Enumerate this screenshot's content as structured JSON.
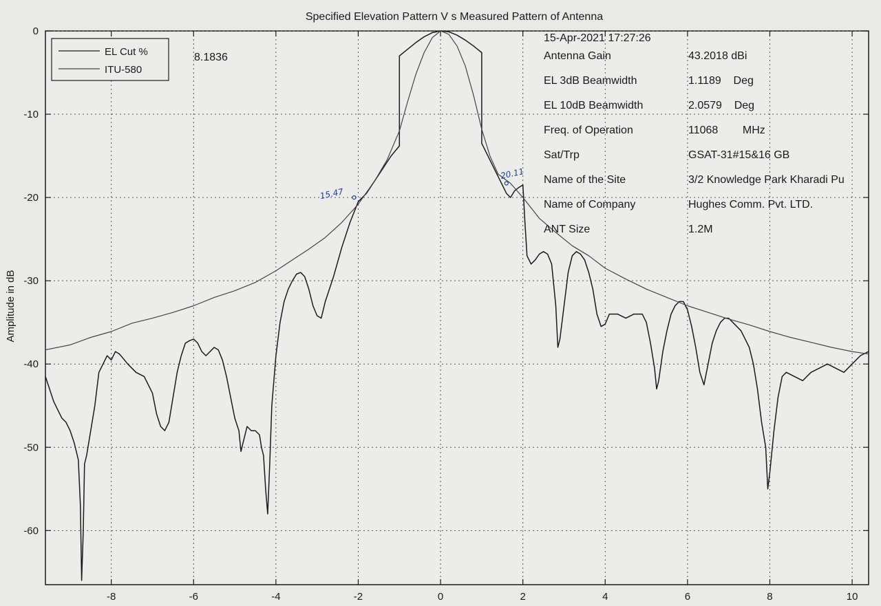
{
  "chart_data": {
    "type": "line",
    "title": "Specified Elevation Pattern  V s Measured Pattern of  Antenna",
    "xlabel": "",
    "ylabel": "Amplitude in dB",
    "xlim": [
      -9.6,
      10.4
    ],
    "ylim": [
      -66.5,
      0
    ],
    "x_ticks": [
      -8,
      -6,
      -4,
      -2,
      0,
      2,
      4,
      6,
      8,
      10
    ],
    "x_tick_labels": [
      "-8",
      "-6",
      "-4",
      "-2",
      "0",
      "2",
      "4",
      "6",
      "8",
      "10"
    ],
    "y_ticks": [
      0,
      -10,
      -20,
      -30,
      -40,
      -50,
      -60
    ],
    "y_tick_labels": [
      "0",
      "-10",
      "-20",
      "-30",
      "-40",
      "-50",
      "-60"
    ],
    "grid": true,
    "legend_position": "top-left",
    "legend": [
      "EL Cut %",
      "ITU-580"
    ],
    "legend_value": "8.1836",
    "series": [
      {
        "name": "EL Cut %",
        "color": "#1a1a1a",
        "points": [
          [
            -9.6,
            -41.5
          ],
          [
            -9.5,
            -43.0
          ],
          [
            -9.4,
            -44.5
          ],
          [
            -9.3,
            -45.5
          ],
          [
            -9.2,
            -46.5
          ],
          [
            -9.1,
            -47.0
          ],
          [
            -9.0,
            -48.0
          ],
          [
            -8.9,
            -49.5
          ],
          [
            -8.8,
            -51.5
          ],
          [
            -8.75,
            -57
          ],
          [
            -8.72,
            -66
          ],
          [
            -8.68,
            -60
          ],
          [
            -8.65,
            -52.0
          ],
          [
            -8.6,
            -51.0
          ],
          [
            -8.5,
            -48.0
          ],
          [
            -8.4,
            -45.0
          ],
          [
            -8.3,
            -41.0
          ],
          [
            -8.2,
            -40.0
          ],
          [
            -8.1,
            -39.0
          ],
          [
            -8.0,
            -39.5
          ],
          [
            -7.9,
            -38.5
          ],
          [
            -7.8,
            -38.8
          ],
          [
            -7.6,
            -40.0
          ],
          [
            -7.4,
            -41.0
          ],
          [
            -7.2,
            -41.5
          ],
          [
            -7.0,
            -43.5
          ],
          [
            -6.9,
            -46.0
          ],
          [
            -6.8,
            -47.5
          ],
          [
            -6.7,
            -48.0
          ],
          [
            -6.6,
            -47.0
          ],
          [
            -6.5,
            -44.0
          ],
          [
            -6.4,
            -41.0
          ],
          [
            -6.3,
            -39.0
          ],
          [
            -6.2,
            -37.5
          ],
          [
            -6.1,
            -37.2
          ],
          [
            -6.0,
            -37.0
          ],
          [
            -5.9,
            -37.5
          ],
          [
            -5.8,
            -38.5
          ],
          [
            -5.7,
            -39.0
          ],
          [
            -5.6,
            -38.5
          ],
          [
            -5.5,
            -38.0
          ],
          [
            -5.4,
            -38.3
          ],
          [
            -5.3,
            -39.5
          ],
          [
            -5.2,
            -41.5
          ],
          [
            -5.1,
            -44.0
          ],
          [
            -5.0,
            -46.5
          ],
          [
            -4.9,
            -48.0
          ],
          [
            -4.85,
            -50.5
          ],
          [
            -4.8,
            -49.5
          ],
          [
            -4.7,
            -47.5
          ],
          [
            -4.6,
            -48.0
          ],
          [
            -4.5,
            -48.0
          ],
          [
            -4.4,
            -48.5
          ],
          [
            -4.35,
            -50.0
          ],
          [
            -4.3,
            -51.0
          ],
          [
            -4.25,
            -55.0
          ],
          [
            -4.2,
            -58.0
          ],
          [
            -4.15,
            -52.0
          ],
          [
            -4.1,
            -45.0
          ],
          [
            -4.0,
            -39.0
          ],
          [
            -3.9,
            -35.0
          ],
          [
            -3.8,
            -32.5
          ],
          [
            -3.7,
            -31.0
          ],
          [
            -3.6,
            -30.0
          ],
          [
            -3.5,
            -29.2
          ],
          [
            -3.4,
            -29.0
          ],
          [
            -3.3,
            -29.5
          ],
          [
            -3.2,
            -31.0
          ],
          [
            -3.1,
            -33.0
          ],
          [
            -3.0,
            -34.2
          ],
          [
            -2.9,
            -34.5
          ],
          [
            -2.8,
            -32.5
          ],
          [
            -2.6,
            -29.5
          ],
          [
            -2.4,
            -26.0
          ],
          [
            -2.2,
            -23.0
          ],
          [
            -2.0,
            -20.5
          ],
          [
            -1.8,
            -19.5
          ],
          [
            -1.6,
            -18.0
          ],
          [
            -1.4,
            -16.5
          ],
          [
            -1.2,
            -15.0
          ],
          [
            -1.0,
            -13.8
          ],
          [
            -1.0,
            -3.0
          ],
          [
            -0.8,
            -2.2
          ],
          [
            -0.6,
            -1.4
          ],
          [
            -0.4,
            -0.7
          ],
          [
            -0.2,
            -0.2
          ],
          [
            0.0,
            0.0
          ],
          [
            0.2,
            -0.1
          ],
          [
            0.4,
            -0.5
          ],
          [
            0.6,
            -1.1
          ],
          [
            0.8,
            -1.8
          ],
          [
            1.0,
            -2.6
          ],
          [
            1.0,
            -13.5
          ],
          [
            1.2,
            -15.5
          ],
          [
            1.4,
            -17.5
          ],
          [
            1.6,
            -19.5
          ],
          [
            1.7,
            -20.0
          ],
          [
            1.8,
            -19.2
          ],
          [
            1.9,
            -18.8
          ],
          [
            2.0,
            -18.5
          ],
          [
            2.05,
            -23.0
          ],
          [
            2.1,
            -27.0
          ],
          [
            2.2,
            -28.0
          ],
          [
            2.3,
            -27.5
          ],
          [
            2.4,
            -26.8
          ],
          [
            2.5,
            -26.5
          ],
          [
            2.6,
            -26.8
          ],
          [
            2.7,
            -28.0
          ],
          [
            2.8,
            -33.0
          ],
          [
            2.85,
            -38.0
          ],
          [
            2.9,
            -37.0
          ],
          [
            3.0,
            -33.0
          ],
          [
            3.1,
            -29.0
          ],
          [
            3.2,
            -27.0
          ],
          [
            3.3,
            -26.5
          ],
          [
            3.4,
            -26.8
          ],
          [
            3.5,
            -27.5
          ],
          [
            3.6,
            -29.0
          ],
          [
            3.7,
            -31.0
          ],
          [
            3.8,
            -34.0
          ],
          [
            3.9,
            -35.5
          ],
          [
            4.0,
            -35.2
          ],
          [
            4.1,
            -34.0
          ],
          [
            4.3,
            -34.0
          ],
          [
            4.5,
            -34.5
          ],
          [
            4.7,
            -34.0
          ],
          [
            4.9,
            -34.0
          ],
          [
            5.0,
            -35.0
          ],
          [
            5.1,
            -37.5
          ],
          [
            5.2,
            -40.5
          ],
          [
            5.25,
            -43.0
          ],
          [
            5.3,
            -42.0
          ],
          [
            5.4,
            -38.5
          ],
          [
            5.5,
            -36.0
          ],
          [
            5.6,
            -34.0
          ],
          [
            5.7,
            -33.0
          ],
          [
            5.8,
            -32.5
          ],
          [
            5.9,
            -32.5
          ],
          [
            6.0,
            -33.5
          ],
          [
            6.1,
            -35.5
          ],
          [
            6.2,
            -38.0
          ],
          [
            6.3,
            -41.0
          ],
          [
            6.4,
            -42.5
          ],
          [
            6.5,
            -40.0
          ],
          [
            6.6,
            -37.5
          ],
          [
            6.7,
            -36.0
          ],
          [
            6.8,
            -35.0
          ],
          [
            6.9,
            -34.5
          ],
          [
            7.0,
            -34.5
          ],
          [
            7.1,
            -35.0
          ],
          [
            7.3,
            -36.0
          ],
          [
            7.5,
            -38.0
          ],
          [
            7.6,
            -40.0
          ],
          [
            7.7,
            -43.0
          ],
          [
            7.8,
            -47.0
          ],
          [
            7.9,
            -50.0
          ],
          [
            7.95,
            -55.0
          ],
          [
            8.0,
            -53.0
          ],
          [
            8.1,
            -48.0
          ],
          [
            8.2,
            -44.0
          ],
          [
            8.3,
            -41.5
          ],
          [
            8.4,
            -41.0
          ],
          [
            8.6,
            -41.5
          ],
          [
            8.8,
            -42.0
          ],
          [
            9.0,
            -41.0
          ],
          [
            9.2,
            -40.5
          ],
          [
            9.4,
            -40.0
          ],
          [
            9.6,
            -40.5
          ],
          [
            9.8,
            -41.0
          ],
          [
            10.0,
            -40.0
          ],
          [
            10.2,
            -39.0
          ],
          [
            10.4,
            -38.5
          ]
        ]
      },
      {
        "name": "ITU-580",
        "color": "#444444",
        "points": [
          [
            -9.6,
            -38.3
          ],
          [
            -9.0,
            -37.7
          ],
          [
            -8.5,
            -36.8
          ],
          [
            -8.0,
            -36.1
          ],
          [
            -7.5,
            -35.1
          ],
          [
            -7.0,
            -34.5
          ],
          [
            -6.5,
            -33.8
          ],
          [
            -6.0,
            -33.0
          ],
          [
            -5.5,
            -32.0
          ],
          [
            -5.0,
            -31.2
          ],
          [
            -4.5,
            -30.2
          ],
          [
            -4.0,
            -28.8
          ],
          [
            -3.6,
            -27.5
          ],
          [
            -3.2,
            -26.2
          ],
          [
            -2.8,
            -24.8
          ],
          [
            -2.4,
            -23.0
          ],
          [
            -2.0,
            -20.8
          ],
          [
            -1.6,
            -18.0
          ],
          [
            -1.3,
            -15.5
          ],
          [
            -1.0,
            -12.0
          ],
          [
            -0.8,
            -8.5
          ],
          [
            -0.6,
            -5.2
          ],
          [
            -0.4,
            -2.6
          ],
          [
            -0.2,
            -0.8
          ],
          [
            0.0,
            0.0
          ],
          [
            0.2,
            -0.4
          ],
          [
            0.4,
            -1.8
          ],
          [
            0.6,
            -4.2
          ],
          [
            0.8,
            -7.7
          ],
          [
            1.0,
            -11.8
          ],
          [
            1.2,
            -15.0
          ],
          [
            1.4,
            -17.2
          ],
          [
            1.7,
            -18.3
          ],
          [
            2.0,
            -20.0
          ],
          [
            2.4,
            -22.5
          ],
          [
            2.8,
            -24.2
          ],
          [
            3.2,
            -25.8
          ],
          [
            3.6,
            -27.0
          ],
          [
            4.0,
            -28.5
          ],
          [
            4.5,
            -29.8
          ],
          [
            5.0,
            -31.0
          ],
          [
            5.5,
            -32.0
          ],
          [
            6.0,
            -33.0
          ],
          [
            6.5,
            -33.8
          ],
          [
            7.0,
            -34.6
          ],
          [
            7.5,
            -35.3
          ],
          [
            8.0,
            -36.1
          ],
          [
            8.5,
            -36.8
          ],
          [
            9.0,
            -37.4
          ],
          [
            9.5,
            -38.0
          ],
          [
            10.0,
            -38.5
          ],
          [
            10.4,
            -38.8
          ]
        ]
      }
    ],
    "info_box": {
      "timestamp": "15-Apr-2021 17:27:26",
      "rows": [
        {
          "label": "Antenna Gain",
          "value": "43.2018 dBi"
        },
        {
          "label": "EL 3dB Beamwidth",
          "value": "1.1189    Deg"
        },
        {
          "label": "EL 10dB Beamwidth",
          "value": "2.0579    Deg"
        },
        {
          "label": "Freq. of Operation",
          "value": "11068        MHz"
        },
        {
          "label": "Sat/Trp",
          "value": "GSAT-31#15&16 GB"
        },
        {
          "label": "Name of the Site",
          "value": "3/2 Knowledge Park Kharadi Pu"
        },
        {
          "label": "Name of Company",
          "value": "Hughes Comm. Pvt. LTD."
        },
        {
          "label": "ANT Size",
          "value": "1.2M"
        }
      ]
    },
    "annotations": [
      {
        "text": "15.47",
        "x": -2.1,
        "y": -20.0
      },
      {
        "text": "20.11",
        "x": 1.6,
        "y": -18.3
      }
    ]
  }
}
